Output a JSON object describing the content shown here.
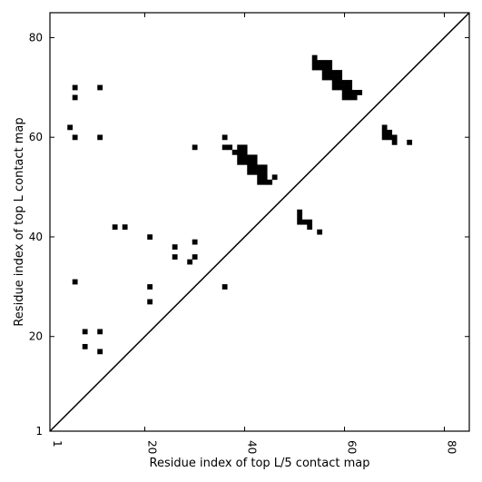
{
  "chart_data": {
    "type": "scatter",
    "xlabel": "Residue index of top L/5 contact map",
    "ylabel": "Residue index of top L contact map",
    "xlim": [
      1,
      85
    ],
    "ylim": [
      1,
      85
    ],
    "xticks": [
      1,
      20,
      40,
      60,
      80
    ],
    "yticks": [
      1,
      20,
      40,
      60,
      80
    ],
    "diagonal": true,
    "marker_color": "#000000",
    "points": [
      {
        "x": 6,
        "y": 70
      },
      {
        "x": 11,
        "y": 70
      },
      {
        "x": 6,
        "y": 68
      },
      {
        "x": 5,
        "y": 62
      },
      {
        "x": 6,
        "y": 60
      },
      {
        "x": 11,
        "y": 60
      },
      {
        "x": 6,
        "y": 31
      },
      {
        "x": 8,
        "y": 21
      },
      {
        "x": 11,
        "y": 21
      },
      {
        "x": 8,
        "y": 18
      },
      {
        "x": 11,
        "y": 17
      },
      {
        "x": 14,
        "y": 42
      },
      {
        "x": 16,
        "y": 42
      },
      {
        "x": 21,
        "y": 40
      },
      {
        "x": 26,
        "y": 38
      },
      {
        "x": 30,
        "y": 39
      },
      {
        "x": 26,
        "y": 36
      },
      {
        "x": 30,
        "y": 36
      },
      {
        "x": 29,
        "y": 35
      },
      {
        "x": 21,
        "y": 30
      },
      {
        "x": 21,
        "y": 27
      },
      {
        "x": 36,
        "y": 30
      },
      {
        "x": 30,
        "y": 58
      },
      {
        "x": 36,
        "y": 60
      },
      {
        "x": 36,
        "y": 58
      },
      {
        "x": 37,
        "y": 58
      },
      {
        "x": 38,
        "y": 57
      },
      {
        "x": 39,
        "y": 58
      },
      {
        "x": 40,
        "y": 58
      },
      {
        "x": 39,
        "y": 57
      },
      {
        "x": 40,
        "y": 57
      },
      {
        "x": 39,
        "y": 56
      },
      {
        "x": 40,
        "y": 56
      },
      {
        "x": 41,
        "y": 56
      },
      {
        "x": 42,
        "y": 56
      },
      {
        "x": 39,
        "y": 55
      },
      {
        "x": 40,
        "y": 55
      },
      {
        "x": 41,
        "y": 55
      },
      {
        "x": 42,
        "y": 55
      },
      {
        "x": 41,
        "y": 54
      },
      {
        "x": 42,
        "y": 54
      },
      {
        "x": 43,
        "y": 54
      },
      {
        "x": 44,
        "y": 54
      },
      {
        "x": 41,
        "y": 53
      },
      {
        "x": 42,
        "y": 53
      },
      {
        "x": 43,
        "y": 53
      },
      {
        "x": 44,
        "y": 53
      },
      {
        "x": 43,
        "y": 52
      },
      {
        "x": 44,
        "y": 52
      },
      {
        "x": 46,
        "y": 52
      },
      {
        "x": 43,
        "y": 51
      },
      {
        "x": 44,
        "y": 51
      },
      {
        "x": 45,
        "y": 51
      },
      {
        "x": 51,
        "y": 45
      },
      {
        "x": 51,
        "y": 44
      },
      {
        "x": 51,
        "y": 43
      },
      {
        "x": 52,
        "y": 43
      },
      {
        "x": 53,
        "y": 43
      },
      {
        "x": 53,
        "y": 42
      },
      {
        "x": 55,
        "y": 41
      },
      {
        "x": 54,
        "y": 76
      },
      {
        "x": 54,
        "y": 75
      },
      {
        "x": 55,
        "y": 75
      },
      {
        "x": 56,
        "y": 75
      },
      {
        "x": 57,
        "y": 75
      },
      {
        "x": 54,
        "y": 74
      },
      {
        "x": 55,
        "y": 74
      },
      {
        "x": 56,
        "y": 74
      },
      {
        "x": 57,
        "y": 74
      },
      {
        "x": 56,
        "y": 73
      },
      {
        "x": 57,
        "y": 73
      },
      {
        "x": 58,
        "y": 73
      },
      {
        "x": 59,
        "y": 73
      },
      {
        "x": 56,
        "y": 72
      },
      {
        "x": 57,
        "y": 72
      },
      {
        "x": 58,
        "y": 72
      },
      {
        "x": 59,
        "y": 72
      },
      {
        "x": 58,
        "y": 71
      },
      {
        "x": 59,
        "y": 71
      },
      {
        "x": 60,
        "y": 71
      },
      {
        "x": 61,
        "y": 71
      },
      {
        "x": 58,
        "y": 70
      },
      {
        "x": 59,
        "y": 70
      },
      {
        "x": 60,
        "y": 70
      },
      {
        "x": 61,
        "y": 70
      },
      {
        "x": 60,
        "y": 69
      },
      {
        "x": 61,
        "y": 69
      },
      {
        "x": 62,
        "y": 69
      },
      {
        "x": 63,
        "y": 69
      },
      {
        "x": 60,
        "y": 68
      },
      {
        "x": 61,
        "y": 68
      },
      {
        "x": 62,
        "y": 68
      },
      {
        "x": 68,
        "y": 62
      },
      {
        "x": 68,
        "y": 61
      },
      {
        "x": 69,
        "y": 61
      },
      {
        "x": 68,
        "y": 60
      },
      {
        "x": 69,
        "y": 60
      },
      {
        "x": 70,
        "y": 60
      },
      {
        "x": 70,
        "y": 59
      },
      {
        "x": 73,
        "y": 59
      }
    ]
  }
}
